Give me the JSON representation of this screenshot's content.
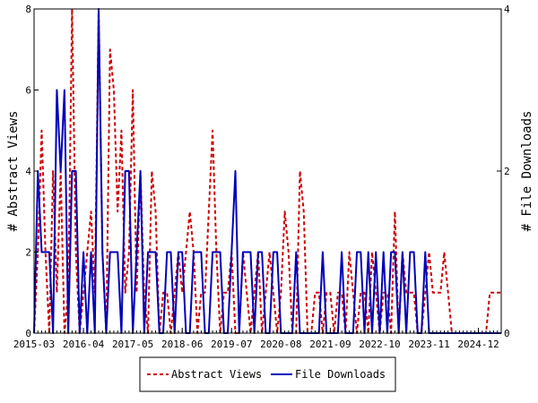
{
  "chart_data": {
    "type": "line",
    "title": "",
    "y_label_left": "# Abstract Views",
    "y_label_right": "# File Downloads",
    "x_tick_labels": [
      "2015-03",
      "2016-04",
      "2017-05",
      "2018-06",
      "2019-07",
      "2020-08",
      "2021-09",
      "2022-10",
      "2023-11",
      "2024-12"
    ],
    "y_left_ticks": [
      "0",
      "2",
      "4",
      "6",
      "8"
    ],
    "y_right_ticks": [
      "0",
      "2",
      "4"
    ],
    "ylim_left": [
      0,
      8
    ],
    "ylim_right": [
      0,
      4
    ],
    "legend_position": "bottom-center",
    "grid": false,
    "x_months": [
      "2015-03",
      "2015-04",
      "2015-05",
      "2015-06",
      "2015-07",
      "2015-08",
      "2015-09",
      "2015-10",
      "2015-11",
      "2015-12",
      "2016-01",
      "2016-02",
      "2016-03",
      "2016-04",
      "2016-05",
      "2016-06",
      "2016-07",
      "2016-08",
      "2016-09",
      "2016-10",
      "2016-11",
      "2016-12",
      "2017-01",
      "2017-02",
      "2017-03",
      "2017-04",
      "2017-05",
      "2017-06",
      "2017-07",
      "2017-08",
      "2017-09",
      "2017-10",
      "2017-11",
      "2017-12",
      "2018-01",
      "2018-02",
      "2018-03",
      "2018-04",
      "2018-05",
      "2018-06",
      "2018-07",
      "2018-08",
      "2018-09",
      "2018-10",
      "2018-11",
      "2018-12",
      "2019-01",
      "2019-02",
      "2019-03",
      "2019-04",
      "2019-05",
      "2019-06",
      "2019-07",
      "2019-08",
      "2019-09",
      "2019-10",
      "2019-11",
      "2019-12",
      "2020-01",
      "2020-02",
      "2020-03",
      "2020-04",
      "2020-05",
      "2020-06",
      "2020-07",
      "2020-08",
      "2020-09",
      "2020-10",
      "2020-11",
      "2020-12",
      "2021-01",
      "2021-02",
      "2021-03",
      "2021-04",
      "2021-05",
      "2021-06",
      "2021-07",
      "2021-08",
      "2021-09",
      "2021-10",
      "2021-11",
      "2021-12",
      "2022-01",
      "2022-02",
      "2022-03",
      "2022-04",
      "2022-05",
      "2022-06",
      "2022-07",
      "2022-08",
      "2022-09",
      "2022-10",
      "2022-11",
      "2022-12",
      "2023-01",
      "2023-02",
      "2023-03",
      "2023-04",
      "2023-05",
      "2023-06",
      "2023-07",
      "2023-08",
      "2023-09",
      "2023-10",
      "2023-11",
      "2023-12",
      "2024-01",
      "2024-02",
      "2024-03",
      "2024-04",
      "2024-05",
      "2024-06",
      "2024-07",
      "2024-08",
      "2024-09",
      "2024-10",
      "2024-11",
      "2024-12",
      "2025-01",
      "2025-02",
      "2025-03",
      "2025-04",
      "2025-05",
      "2025-06"
    ],
    "series": [
      {
        "name": "Abstract Views",
        "axis": "left",
        "color": "#cc0000",
        "dash": true,
        "values": [
          0,
          2,
          5,
          2,
          0,
          4,
          1,
          4,
          0,
          1,
          8,
          2,
          0,
          1,
          2,
          3,
          1,
          8,
          2,
          0,
          7,
          6,
          3,
          5,
          1,
          2,
          6,
          1,
          4,
          1,
          0,
          4,
          3,
          0,
          1,
          1,
          0,
          1,
          2,
          1,
          2,
          3,
          2,
          0,
          1,
          1,
          3,
          5,
          2,
          0,
          1,
          1,
          2,
          0,
          0,
          2,
          1,
          0,
          1,
          2,
          0,
          1,
          2,
          1,
          0,
          1,
          3,
          2,
          0,
          0,
          4,
          3,
          0,
          0,
          1,
          1,
          0,
          1,
          1,
          0,
          1,
          1,
          0,
          2,
          1,
          0,
          1,
          1,
          0,
          2,
          1,
          0,
          1,
          1,
          0,
          3,
          0,
          2,
          1,
          1,
          1,
          0,
          0,
          1,
          2,
          1,
          1,
          1,
          2,
          1,
          0,
          0,
          0,
          0,
          0,
          0,
          0,
          0,
          0,
          0,
          1,
          1,
          1,
          1
        ]
      },
      {
        "name": "File Downloads",
        "axis": "right",
        "color": "#0000bb",
        "dash": false,
        "values": [
          0,
          2,
          1,
          1,
          1,
          0,
          3,
          2,
          3,
          0,
          2,
          2,
          0,
          1,
          0,
          1,
          0,
          4,
          1,
          0,
          1,
          1,
          1,
          0,
          2,
          2,
          0,
          1,
          2,
          0,
          1,
          1,
          1,
          0,
          0,
          1,
          1,
          0,
          1,
          1,
          0,
          0,
          1,
          1,
          1,
          0,
          0,
          1,
          1,
          1,
          0,
          0,
          1,
          2,
          0,
          1,
          1,
          1,
          0,
          1,
          1,
          0,
          0,
          1,
          1,
          0,
          0,
          0,
          0,
          1,
          0,
          0,
          0,
          0,
          0,
          0,
          1,
          0,
          0,
          0,
          0,
          1,
          0,
          0,
          0,
          1,
          1,
          0,
          1,
          0,
          1,
          0,
          1,
          0,
          1,
          1,
          0,
          1,
          0,
          1,
          1,
          0,
          0,
          1,
          0,
          0,
          0,
          0,
          0,
          0,
          0,
          0,
          0,
          0,
          0,
          0,
          0,
          0,
          0,
          0,
          0,
          0,
          0,
          0
        ]
      }
    ]
  }
}
